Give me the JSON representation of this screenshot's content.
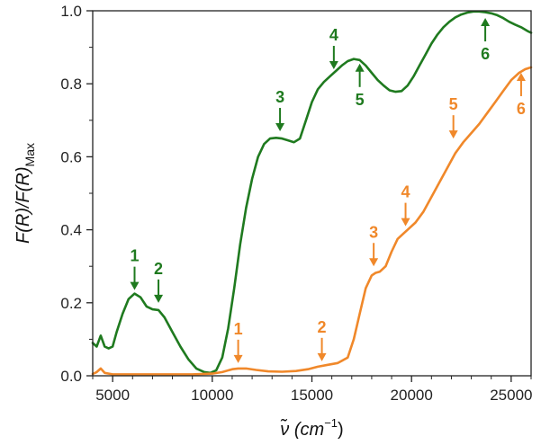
{
  "chart_data": {
    "type": "line",
    "xlim": [
      4000,
      26000
    ],
    "ylim": [
      0,
      1.0
    ],
    "x_ticks": [
      5000,
      10000,
      15000,
      20000,
      25000
    ],
    "x_tick_labels": [
      "5000",
      "10000",
      "15000",
      "20000",
      "25000"
    ],
    "y_ticks": [
      0.0,
      0.2,
      0.4,
      0.6,
      0.8,
      1.0
    ],
    "y_tick_labels": [
      "0.0",
      "0.2",
      "0.4",
      "0.6",
      "0.8",
      "1.0"
    ],
    "xlabel_main": "ν̃ (cm",
    "xlabel_sup": "−1",
    "xlabel_end": ")",
    "ylabel_main": "F(R)/F(R)",
    "ylabel_sub": "Max",
    "grid": false,
    "series": [
      {
        "color": "#1f7a1f",
        "x": [
          4000,
          4200,
          4400,
          4600,
          4800,
          5000,
          5200,
          5500,
          5800,
          6100,
          6400,
          6700,
          7000,
          7300,
          7600,
          8000,
          8400,
          8800,
          9200,
          9600,
          9900,
          10200,
          10500,
          10800,
          11100,
          11400,
          11700,
          12000,
          12300,
          12600,
          12900,
          13200,
          13500,
          13800,
          14100,
          14400,
          14700,
          15000,
          15300,
          15600,
          15900,
          16200,
          16500,
          16800,
          17100,
          17400,
          17700,
          18000,
          18300,
          18600,
          18900,
          19200,
          19500,
          19800,
          20100,
          20400,
          20700,
          21000,
          21300,
          21600,
          21900,
          22200,
          22500,
          22800,
          23100,
          23400,
          23700,
          24000,
          24300,
          24600,
          24900,
          25200,
          25500,
          25800,
          26000
        ],
        "y": [
          0.09,
          0.08,
          0.11,
          0.08,
          0.075,
          0.08,
          0.12,
          0.17,
          0.21,
          0.225,
          0.215,
          0.19,
          0.182,
          0.18,
          0.16,
          0.12,
          0.08,
          0.045,
          0.02,
          0.01,
          0.008,
          0.015,
          0.05,
          0.13,
          0.24,
          0.36,
          0.46,
          0.54,
          0.6,
          0.635,
          0.65,
          0.652,
          0.65,
          0.645,
          0.64,
          0.65,
          0.7,
          0.75,
          0.785,
          0.805,
          0.82,
          0.835,
          0.85,
          0.862,
          0.868,
          0.865,
          0.85,
          0.83,
          0.81,
          0.795,
          0.782,
          0.778,
          0.78,
          0.795,
          0.82,
          0.85,
          0.88,
          0.91,
          0.935,
          0.955,
          0.97,
          0.982,
          0.99,
          0.995,
          0.998,
          0.998,
          0.996,
          0.993,
          0.988,
          0.98,
          0.97,
          0.962,
          0.955,
          0.945,
          0.94
        ]
      },
      {
        "color": "#f0882a",
        "x": [
          4000,
          4200,
          4400,
          4600,
          5000,
          6000,
          7000,
          8000,
          9000,
          10000,
          10500,
          11000,
          11300,
          11700,
          12200,
          12800,
          13500,
          14200,
          14800,
          15300,
          15800,
          16300,
          16800,
          17100,
          17400,
          17700,
          18000,
          18200,
          18400,
          18700,
          19000,
          19300,
          19600,
          19900,
          20200,
          20600,
          21000,
          21400,
          21800,
          22200,
          22600,
          23000,
          23400,
          23800,
          24200,
          24600,
          25000,
          25400,
          25700,
          26000
        ],
        "y": [
          0.005,
          0.01,
          0.02,
          0.008,
          0.004,
          0.004,
          0.004,
          0.004,
          0.004,
          0.006,
          0.01,
          0.018,
          0.02,
          0.02,
          0.016,
          0.012,
          0.011,
          0.013,
          0.018,
          0.025,
          0.03,
          0.035,
          0.05,
          0.1,
          0.17,
          0.24,
          0.275,
          0.282,
          0.285,
          0.3,
          0.34,
          0.375,
          0.39,
          0.405,
          0.42,
          0.45,
          0.49,
          0.53,
          0.57,
          0.61,
          0.64,
          0.665,
          0.69,
          0.72,
          0.75,
          0.78,
          0.81,
          0.83,
          0.84,
          0.845
        ]
      }
    ],
    "annotations": [
      {
        "text": "1",
        "series": 0,
        "x": 6100,
        "y": 0.225,
        "dir": "down"
      },
      {
        "text": "2",
        "series": 0,
        "x": 7300,
        "y": 0.19,
        "dir": "down"
      },
      {
        "text": "3",
        "series": 0,
        "x": 13400,
        "y": 0.66,
        "dir": "down"
      },
      {
        "text": "4",
        "series": 0,
        "x": 16100,
        "y": 0.83,
        "dir": "down"
      },
      {
        "text": "5",
        "series": 0,
        "x": 17400,
        "y": 0.865,
        "dir": "up"
      },
      {
        "text": "6",
        "series": 0,
        "x": 23700,
        "y": 0.99,
        "dir": "up"
      },
      {
        "text": "1",
        "series": 1,
        "x": 11300,
        "y": 0.025,
        "dir": "down"
      },
      {
        "text": "2",
        "series": 1,
        "x": 15500,
        "y": 0.03,
        "dir": "down"
      },
      {
        "text": "3",
        "series": 1,
        "x": 18100,
        "y": 0.29,
        "dir": "down"
      },
      {
        "text": "4",
        "series": 1,
        "x": 19700,
        "y": 0.4,
        "dir": "down"
      },
      {
        "text": "5",
        "series": 1,
        "x": 22100,
        "y": 0.64,
        "dir": "down"
      },
      {
        "text": "6",
        "series": 1,
        "x": 25500,
        "y": 0.84,
        "dir": "up"
      }
    ]
  }
}
